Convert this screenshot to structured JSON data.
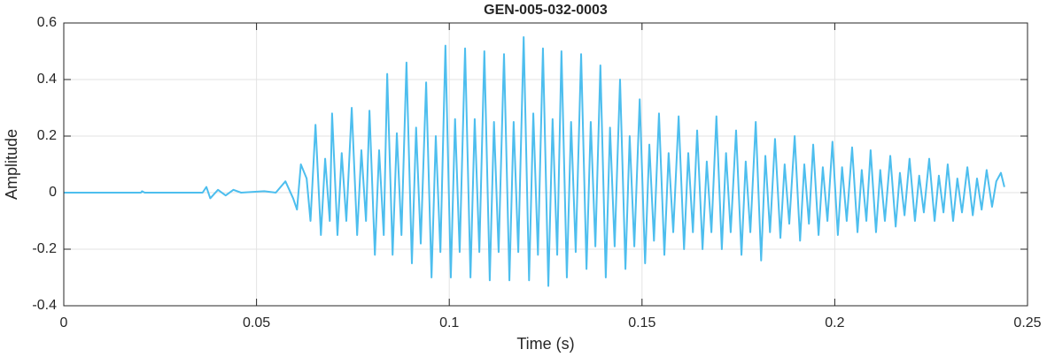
{
  "chart_data": {
    "type": "line",
    "title": "GEN-005-032-0003",
    "x_label": "Time (s)",
    "y_label": "Amplitude",
    "x": [
      0,
      0.02,
      0.0203,
      0.021,
      0.036,
      0.037,
      0.038,
      0.04,
      0.042,
      0.044,
      0.046,
      0.052,
      0.055,
      0.0575,
      0.0595,
      0.0605,
      0.0615,
      0.063,
      0.064,
      0.0653,
      0.0667,
      0.0678,
      0.069,
      0.0696,
      0.071,
      0.0721,
      0.0733,
      0.0747,
      0.0761,
      0.0772,
      0.0784,
      0.0793,
      0.0807,
      0.0818,
      0.083,
      0.0839,
      0.0853,
      0.0864,
      0.0876,
      0.0889,
      0.0903,
      0.0914,
      0.0926,
      0.094,
      0.0954,
      0.0965,
      0.0977,
      0.099,
      0.1004,
      0.1015,
      0.1027,
      0.1041,
      0.1055,
      0.1066,
      0.1078,
      0.1091,
      0.1105,
      0.1116,
      0.1128,
      0.1142,
      0.1156,
      0.1167,
      0.1179,
      0.1193,
      0.1207,
      0.1218,
      0.123,
      0.1243,
      0.1257,
      0.1268,
      0.128,
      0.1291,
      0.1305,
      0.1316,
      0.1328,
      0.1342,
      0.1356,
      0.1367,
      0.1379,
      0.1392,
      0.1406,
      0.1417,
      0.1429,
      0.1443,
      0.1457,
      0.1468,
      0.148,
      0.1494,
      0.1508,
      0.1519,
      0.1531,
      0.1544,
      0.1558,
      0.1569,
      0.1581,
      0.1595,
      0.1609,
      0.162,
      0.1632,
      0.1643,
      0.1657,
      0.1668,
      0.168,
      0.1693,
      0.1707,
      0.1718,
      0.173,
      0.1744,
      0.1758,
      0.1769,
      0.1781,
      0.1795,
      0.1809,
      0.182,
      0.1832,
      0.1845,
      0.1859,
      0.187,
      0.1882,
      0.1896,
      0.191,
      0.1921,
      0.1933,
      0.1944,
      0.1958,
      0.1969,
      0.1981,
      0.1994,
      0.2008,
      0.2019,
      0.2031,
      0.2045,
      0.2059,
      0.207,
      0.2082,
      0.2093,
      0.2107,
      0.2118,
      0.213,
      0.2144,
      0.2158,
      0.2169,
      0.2181,
      0.2194,
      0.2208,
      0.2219,
      0.2231,
      0.2245,
      0.2259,
      0.227,
      0.2282,
      0.2293,
      0.2307,
      0.2318,
      0.233,
      0.2344,
      0.2358,
      0.2369,
      0.2381,
      0.2394,
      0.2408,
      0.2419,
      0.2431,
      0.244
    ],
    "series": [
      {
        "color": "#4dbeee",
        "values": [
          0,
          0,
          0.005,
          0,
          0,
          0.02,
          -0.02,
          0.01,
          -0.01,
          0.01,
          0,
          0.005,
          0,
          0.04,
          -0.02,
          -0.06,
          0.1,
          0.05,
          -0.1,
          0.24,
          -0.15,
          0.12,
          -0.1,
          0.28,
          -0.15,
          0.14,
          -0.1,
          0.3,
          -0.15,
          0.15,
          -0.1,
          0.29,
          -0.22,
          0.15,
          -0.15,
          0.42,
          -0.22,
          0.21,
          -0.15,
          0.46,
          -0.25,
          0.23,
          -0.18,
          0.39,
          -0.3,
          0.2,
          -0.21,
          0.52,
          -0.3,
          0.26,
          -0.21,
          0.51,
          -0.3,
          0.26,
          -0.21,
          0.5,
          -0.31,
          0.25,
          -0.21,
          0.49,
          -0.31,
          0.25,
          -0.21,
          0.55,
          -0.31,
          0.28,
          -0.22,
          0.51,
          -0.33,
          0.26,
          -0.22,
          0.5,
          -0.3,
          0.25,
          -0.21,
          0.49,
          -0.27,
          0.25,
          -0.19,
          0.45,
          -0.3,
          0.23,
          -0.19,
          0.4,
          -0.27,
          0.2,
          -0.19,
          0.33,
          -0.25,
          0.17,
          -0.17,
          0.28,
          -0.22,
          0.14,
          -0.14,
          0.27,
          -0.2,
          0.14,
          -0.14,
          0.22,
          -0.2,
          0.11,
          -0.14,
          0.27,
          -0.2,
          0.14,
          -0.14,
          0.22,
          -0.22,
          0.11,
          -0.14,
          0.25,
          -0.24,
          0.13,
          -0.14,
          0.19,
          -0.16,
          0.1,
          -0.11,
          0.2,
          -0.17,
          0.1,
          -0.11,
          0.17,
          -0.15,
          0.09,
          -0.1,
          0.18,
          -0.15,
          0.09,
          -0.1,
          0.16,
          -0.14,
          0.08,
          -0.1,
          0.15,
          -0.14,
          0.08,
          -0.1,
          0.13,
          -0.12,
          0.07,
          -0.08,
          0.12,
          -0.1,
          0.06,
          -0.07,
          0.12,
          -0.1,
          0.06,
          -0.07,
          0.1,
          -0.1,
          0.05,
          -0.07,
          0.09,
          -0.08,
          0.05,
          -0.06,
          0.08,
          -0.05,
          0.04,
          0.07,
          0.02
        ]
      }
    ],
    "xlim": [
      0,
      0.25
    ],
    "xticks": [
      0,
      0.05,
      0.1,
      0.15,
      0.2,
      0.25
    ],
    "ylim": [
      -0.4,
      0.6
    ],
    "yticks": [
      -0.4,
      -0.2,
      0,
      0.2,
      0.4,
      0.6
    ],
    "grid": true
  }
}
